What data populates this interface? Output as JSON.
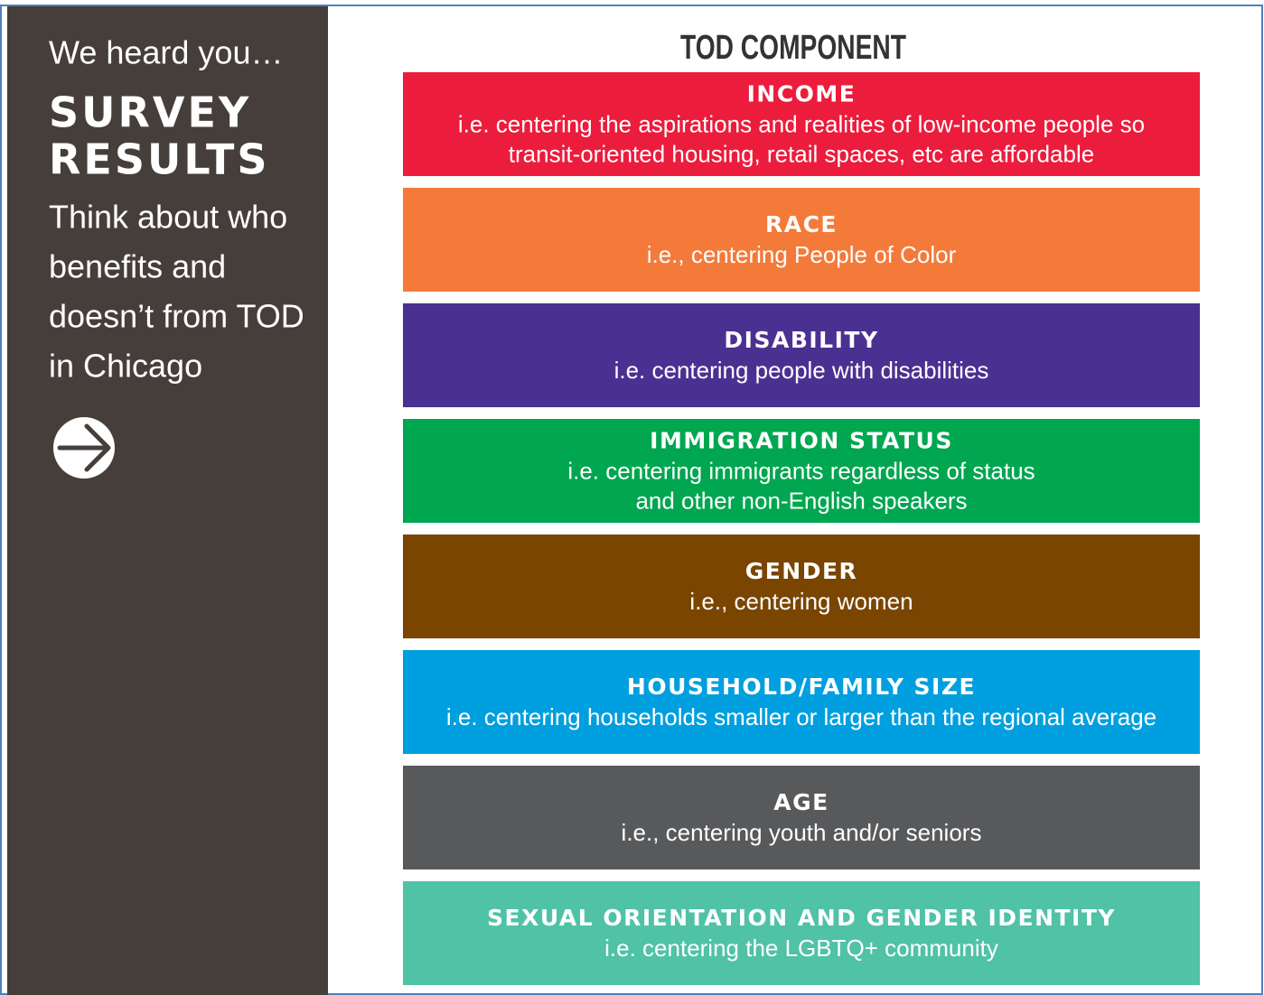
{
  "sidebar": {
    "intro": "We heard you…",
    "heading": [
      "SURVEY",
      "RESULTS"
    ],
    "body": [
      "Think about who",
      "benefits and",
      "doesn’t from TOD",
      "in Chicago"
    ]
  },
  "header": {
    "title": "TOD COMPONENT"
  },
  "components": [
    {
      "title": "INCOME",
      "description": [
        "i.e. centering the aspirations and realities of low-income people so",
        "transit-oriented housing, retail spaces, etc are affordable"
      ],
      "color": "#ec1c3c"
    },
    {
      "title": "RACE",
      "description": [
        "i.e., centering People of Color"
      ],
      "color": "#f47a3a"
    },
    {
      "title": "DISABILITY",
      "description": [
        "i.e. centering people with disabilities"
      ],
      "color": "#4a3191"
    },
    {
      "title": "IMMIGRATION STATUS",
      "description": [
        "i.e. centering immigrants regardless of status",
        "and other non-English speakers"
      ],
      "color": "#00a650"
    },
    {
      "title": "GENDER",
      "description": [
        "i.e., centering women"
      ],
      "color": "#7a4500"
    },
    {
      "title": "HOUSEHOLD/FAMILY SIZE",
      "description": [
        "i.e. centering households smaller or larger than the regional average"
      ],
      "color": "#009fdf"
    },
    {
      "title": "AGE",
      "description": [
        "i.e., centering youth and/or seniors"
      ],
      "color": "#58595b"
    },
    {
      "title": "SEXUAL ORIENTATION AND GENDER IDENTITY",
      "description": [
        "i.e. centering the LGBTQ+ community"
      ],
      "color": "#50c2a6"
    }
  ]
}
